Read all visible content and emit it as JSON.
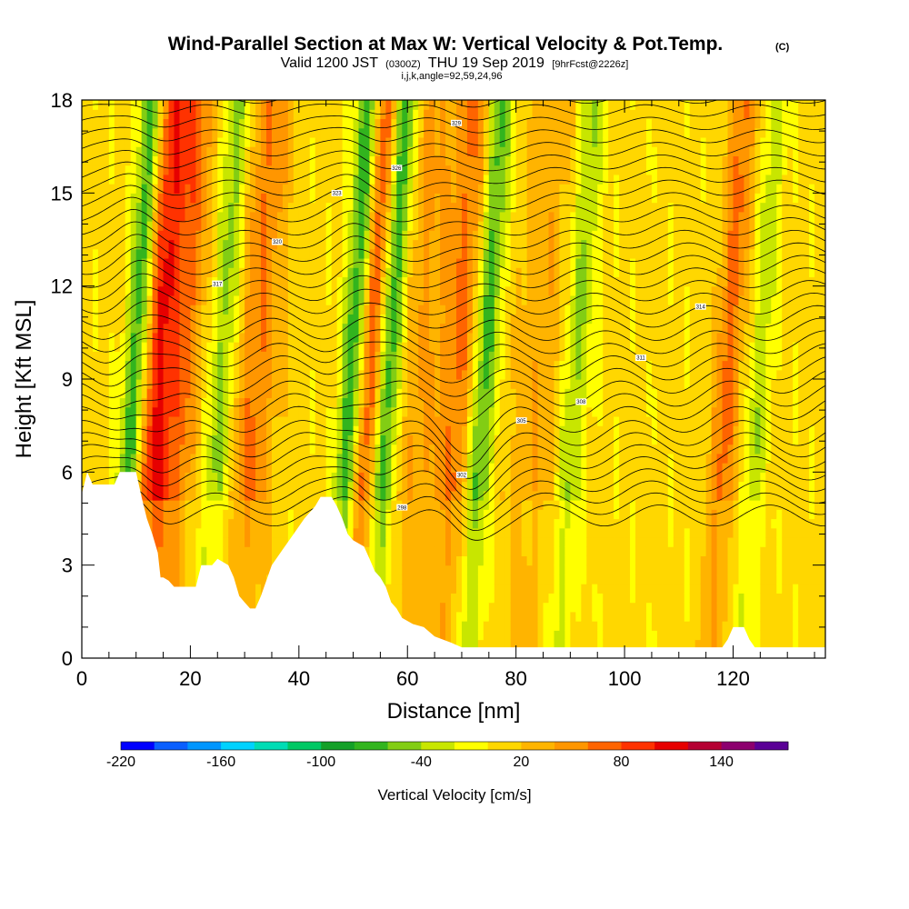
{
  "title": "Wind-Parallel Section at Max W: Vertical Velocity & Pot.Temp.",
  "title_mark": "(C)",
  "subtitle": {
    "valid": "Valid 1200 JST",
    "utc": "(0300Z)",
    "date": "THU 19 Sep 2019",
    "forecast": "[9hrFcst@2226z]"
  },
  "section_info": "i,j,k,angle=92,59,24,96",
  "chart_data": {
    "type": "heatmap",
    "xlabel": "Distance [nm]",
    "ylabel": "Height [Kft MSL]",
    "xlim": [
      0,
      137
    ],
    "ylim": [
      0,
      18
    ],
    "x_ticks": [
      0,
      20,
      40,
      60,
      80,
      100,
      120
    ],
    "y_ticks": [
      0,
      3,
      6,
      9,
      12,
      15,
      18
    ],
    "colorbar": {
      "label": "Vertical Velocity [cm/s]",
      "tick_labels": [
        "-220",
        "-160",
        "-100",
        "-40",
        "20",
        "80",
        "140"
      ],
      "tick_values": [
        -220,
        -160,
        -100,
        -40,
        20,
        80,
        140
      ],
      "levels": [
        -220,
        -200,
        -180,
        -160,
        -140,
        -120,
        -100,
        -80,
        -60,
        -40,
        -20,
        0,
        20,
        40,
        60,
        80,
        100,
        120,
        140,
        160
      ],
      "colors": [
        "#0000ff",
        "#0a5fff",
        "#0096ff",
        "#00d2ff",
        "#00dcb4",
        "#00c864",
        "#14a028",
        "#32b41e",
        "#82cd14",
        "#c8e600",
        "#ffff00",
        "#ffd700",
        "#ffb400",
        "#ff9600",
        "#ff6400",
        "#ff3200",
        "#e60000",
        "#b40032",
        "#8c006e",
        "#5a0096"
      ]
    },
    "updraft_bands": [
      {
        "x": 11,
        "width": 2.2,
        "peak": -95
      },
      {
        "x": 15,
        "width": 3.5,
        "peak": 95
      },
      {
        "x": 20,
        "width": 3,
        "peak": 50
      },
      {
        "x": 27,
        "width": 2.5,
        "peak": -55
      },
      {
        "x": 33,
        "width": 4,
        "peak": 55
      },
      {
        "x": 51,
        "width": 2.2,
        "peak": -95
      },
      {
        "x": 54,
        "width": 2.6,
        "peak": 85
      },
      {
        "x": 57.5,
        "width": 2.3,
        "peak": -90
      },
      {
        "x": 63,
        "width": 4,
        "peak": 35
      },
      {
        "x": 71,
        "width": 4,
        "peak": 60
      },
      {
        "x": 75,
        "width": 2.5,
        "peak": -90
      },
      {
        "x": 85,
        "width": 5,
        "peak": 30
      },
      {
        "x": 92,
        "width": 2.5,
        "peak": -50
      },
      {
        "x": 120,
        "width": 2.5,
        "peak": 60
      },
      {
        "x": 126,
        "width": 2,
        "peak": -40
      }
    ],
    "terrain": [
      [
        0,
        5.3
      ],
      [
        1,
        6
      ],
      [
        2,
        5.6
      ],
      [
        4,
        5.6
      ],
      [
        6,
        5.6
      ],
      [
        7,
        6
      ],
      [
        10,
        6
      ],
      [
        11,
        5.2
      ],
      [
        12,
        4.5
      ],
      [
        13,
        4
      ],
      [
        14,
        3.4
      ],
      [
        14.5,
        2.6
      ],
      [
        15,
        2.6
      ],
      [
        16,
        2.5
      ],
      [
        17,
        2.3
      ],
      [
        19,
        2.3
      ],
      [
        21,
        2.3
      ],
      [
        22,
        3
      ],
      [
        24,
        3
      ],
      [
        25,
        3.2
      ],
      [
        27,
        3
      ],
      [
        28,
        2.6
      ],
      [
        29,
        2
      ],
      [
        30,
        1.8
      ],
      [
        31,
        1.6
      ],
      [
        32,
        1.6
      ],
      [
        33,
        2
      ],
      [
        35,
        3
      ],
      [
        37,
        3.5
      ],
      [
        39,
        4
      ],
      [
        41,
        4.5
      ],
      [
        43,
        4.9
      ],
      [
        44,
        5.2
      ],
      [
        46,
        5.2
      ],
      [
        47,
        4.9
      ],
      [
        48,
        4.5
      ],
      [
        49,
        4
      ],
      [
        50,
        3.8
      ],
      [
        52,
        3.6
      ],
      [
        53,
        3.2
      ],
      [
        54,
        2.8
      ],
      [
        55,
        2.6
      ],
      [
        56,
        2.3
      ],
      [
        57,
        1.8
      ],
      [
        58,
        1.6
      ],
      [
        59,
        1.3
      ],
      [
        61,
        1.1
      ],
      [
        63,
        1
      ],
      [
        65,
        0.7
      ],
      [
        68,
        0.5
      ],
      [
        70,
        0.35
      ],
      [
        75,
        0.35
      ],
      [
        85,
        0.35
      ],
      [
        100,
        0.35
      ],
      [
        118,
        0.35
      ],
      [
        119,
        0.6
      ],
      [
        120,
        1
      ],
      [
        122,
        1
      ],
      [
        123,
        0.6
      ],
      [
        124,
        0.35
      ],
      [
        137,
        0.35
      ]
    ],
    "theta_contours": {
      "units": "K",
      "levels": [
        296,
        298,
        300,
        301,
        302,
        303,
        304,
        305,
        306,
        307,
        308,
        309,
        310,
        311,
        312,
        313,
        314,
        315,
        316,
        317,
        318,
        319,
        320,
        321,
        322,
        323,
        324,
        325,
        326,
        327,
        328,
        329,
        330,
        331,
        332
      ]
    },
    "grid": false
  }
}
